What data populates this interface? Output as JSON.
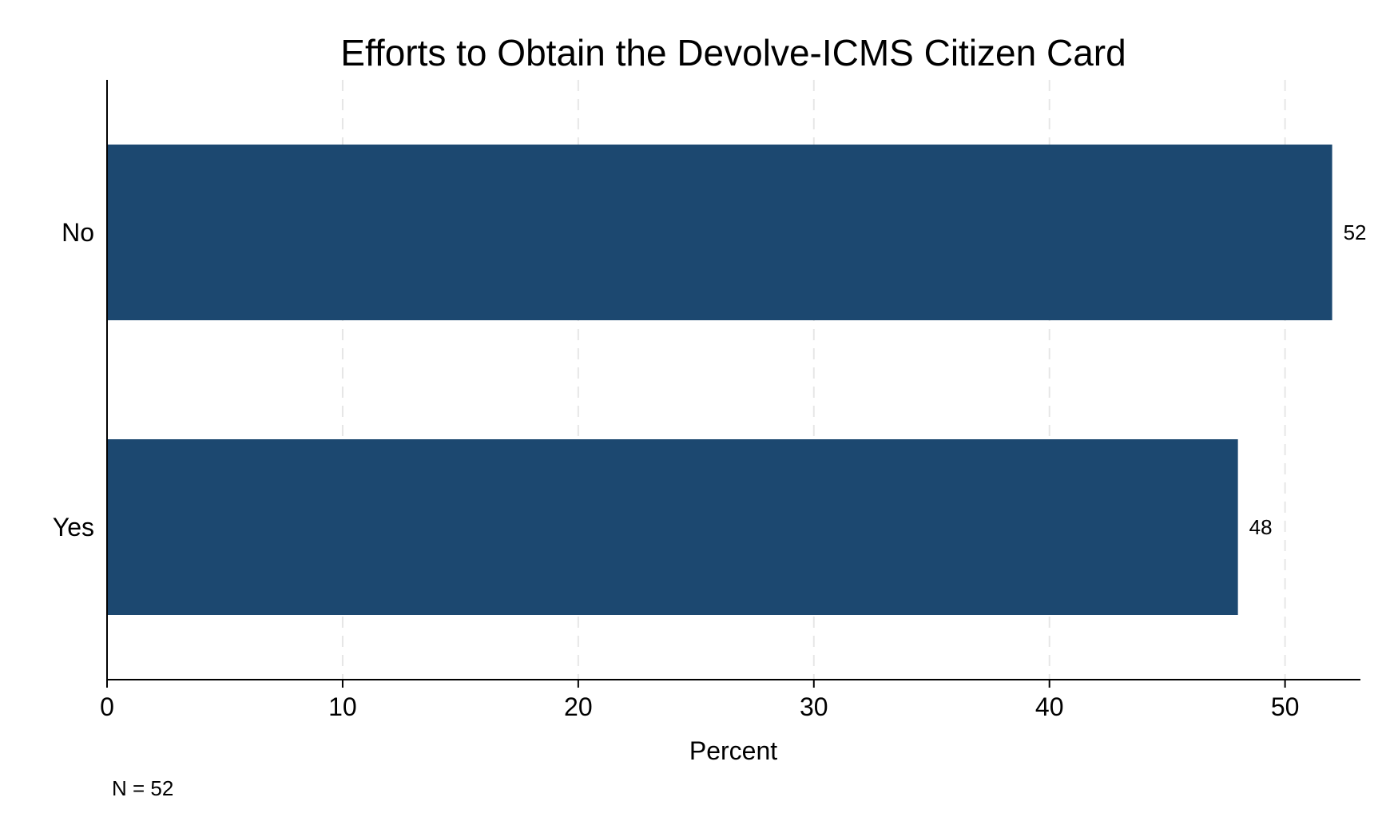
{
  "chart_data": {
    "type": "bar",
    "orientation": "horizontal",
    "title": "Efforts to Obtain the Devolve-ICMS Citizen Card",
    "xlabel": "Percent",
    "ylabel": "",
    "categories": [
      "No",
      "Yes"
    ],
    "values": [
      52,
      48
    ],
    "data_labels": [
      "52",
      "48"
    ],
    "xlim": [
      0,
      53.2
    ],
    "xticks": [
      0,
      10,
      20,
      30,
      40,
      50
    ],
    "xtick_labels": [
      "0",
      "10",
      "20",
      "30",
      "40",
      "50"
    ],
    "grid": true,
    "grid_style": "dashed",
    "bar_color": "#1c4870",
    "note": "N = 52"
  }
}
